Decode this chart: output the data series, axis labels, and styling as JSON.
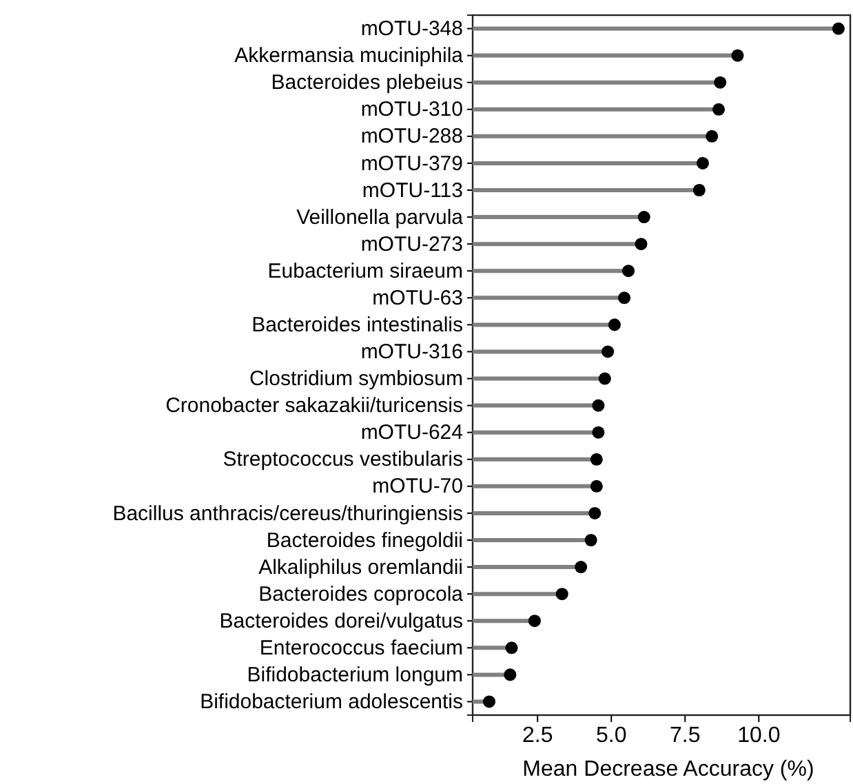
{
  "chart_data": {
    "type": "lollipop",
    "orientation": "horizontal",
    "xlabel": "Mean Decrease Accuracy (%)",
    "categories": [
      "mOTU-348",
      "Akkermansia muciniphila",
      "Bacteroides plebeius",
      "mOTU-310",
      "mOTU-288",
      "mOTU-379",
      "mOTU-113",
      "Veillonella parvula",
      "mOTU-273",
      "Eubacterium siraeum",
      "mOTU-63",
      "Bacteroides intestinalis",
      "mOTU-316",
      "Clostridium symbiosum",
      "Cronobacter sakazakii/turicensis",
      "mOTU-624",
      "Streptococcus vestibularis",
      "mOTU-70",
      "Bacillus anthracis/cereus/thuringiensis",
      "Bacteroides finegoldii",
      "Alkaliphilus oremlandii",
      "Bacteroides coprocola",
      "Bacteroides dorei/vulgatus",
      "Enterococcus faecium",
      "Bifidobacterium longum",
      "Bifidobacterium adolescentis"
    ],
    "values": [
      12.7,
      9.28,
      8.69,
      8.64,
      8.41,
      8.1,
      7.98,
      6.11,
      6.01,
      5.58,
      5.44,
      5.11,
      4.88,
      4.78,
      4.56,
      4.56,
      4.5,
      4.5,
      4.44,
      4.31,
      3.97,
      3.33,
      2.4,
      1.62,
      1.57,
      0.86
    ],
    "color": "#000000",
    "xlim": [
      0.3,
      13.1
    ],
    "xticks": [
      {
        "value": 2.5,
        "label": "2.5"
      },
      {
        "value": 5,
        "label": "5.0"
      },
      {
        "value": 7.5,
        "label": "7.5"
      },
      {
        "value": 10,
        "label": "10.0"
      }
    ],
    "grid": false,
    "marker": "circle"
  }
}
